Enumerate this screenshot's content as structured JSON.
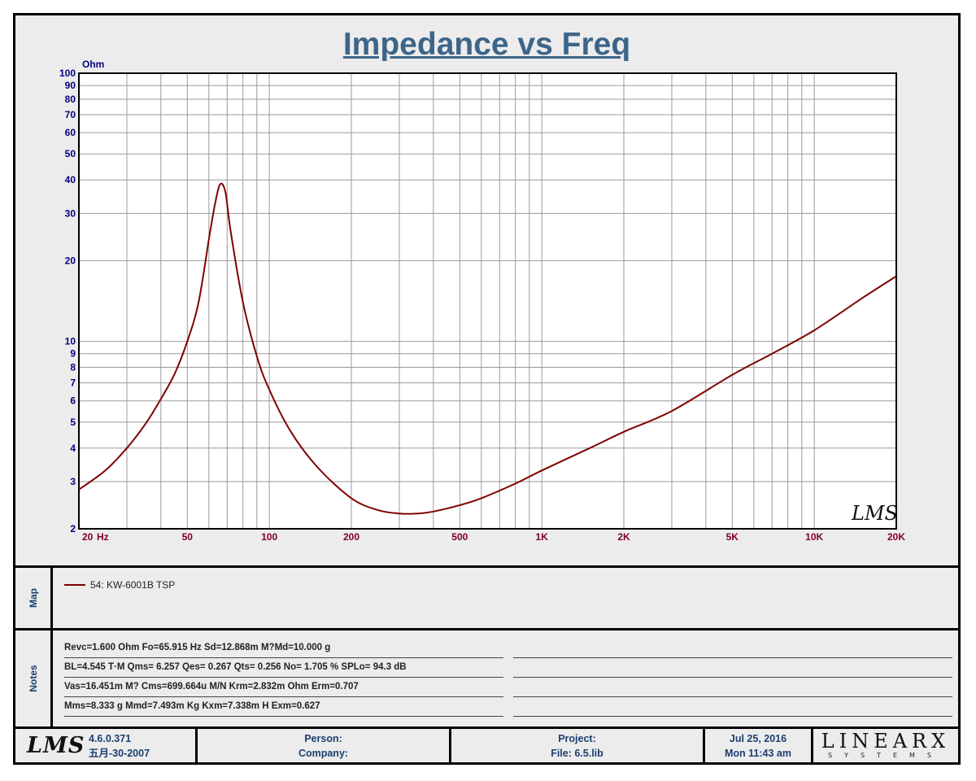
{
  "chart_data": {
    "type": "line",
    "title": "Impedance vs Freq",
    "ylabel": "Ohm",
    "xlabel": "Hz",
    "x_scale": "log",
    "y_scale": "log",
    "xlim": [
      20,
      20000
    ],
    "ylim": [
      2,
      100
    ],
    "grid": true,
    "x_ticks": [
      {
        "value": 20,
        "label": "20"
      },
      {
        "value": 50,
        "label": "50"
      },
      {
        "value": 100,
        "label": "100"
      },
      {
        "value": 200,
        "label": "200"
      },
      {
        "value": 500,
        "label": "500"
      },
      {
        "value": 1000,
        "label": "1K"
      },
      {
        "value": 2000,
        "label": "2K"
      },
      {
        "value": 5000,
        "label": "5K"
      },
      {
        "value": 10000,
        "label": "10K"
      },
      {
        "value": 20000,
        "label": "20K"
      }
    ],
    "y_ticks": [
      {
        "value": 2,
        "label": "2"
      },
      {
        "value": 3,
        "label": "3"
      },
      {
        "value": 4,
        "label": "4"
      },
      {
        "value": 5,
        "label": "5"
      },
      {
        "value": 6,
        "label": "6"
      },
      {
        "value": 7,
        "label": "7"
      },
      {
        "value": 8,
        "label": "8"
      },
      {
        "value": 9,
        "label": "9"
      },
      {
        "value": 10,
        "label": "10"
      },
      {
        "value": 20,
        "label": "20"
      },
      {
        "value": 30,
        "label": "30"
      },
      {
        "value": 40,
        "label": "40"
      },
      {
        "value": 50,
        "label": "50"
      },
      {
        "value": 60,
        "label": "60"
      },
      {
        "value": 70,
        "label": "70"
      },
      {
        "value": 80,
        "label": "80"
      },
      {
        "value": 90,
        "label": "90"
      },
      {
        "value": 100,
        "label": "100"
      }
    ],
    "series": [
      {
        "name": "54: KW-6001B TSP",
        "color": "#800000",
        "x": [
          20,
          25,
          30,
          35,
          40,
          45,
          50,
          55,
          60,
          63,
          65.9,
          69,
          72,
          80,
          90,
          100,
          120,
          150,
          200,
          250,
          300,
          350,
          400,
          500,
          600,
          800,
          1000,
          1500,
          2000,
          3000,
          5000,
          7000,
          10000,
          15000,
          20000
        ],
        "y": [
          2.8,
          3.3,
          4.0,
          4.9,
          6.1,
          7.6,
          10.0,
          14.0,
          24.0,
          32.0,
          38.5,
          36.0,
          26.0,
          14.0,
          8.8,
          6.6,
          4.6,
          3.4,
          2.6,
          2.35,
          2.28,
          2.28,
          2.32,
          2.45,
          2.6,
          2.95,
          3.3,
          4.0,
          4.6,
          5.5,
          7.5,
          9.0,
          11.0,
          14.5,
          17.5
        ]
      }
    ]
  },
  "map": {
    "label": "Map",
    "legend_label": "54: KW-6001B TSP"
  },
  "notes": {
    "label": "Notes",
    "lines": [
      "Revc=1.600 Ohm  Fo=65.915 Hz  Sd=12.868m M?Md=10.000 g",
      "BL=4.545 T·M  Qms= 6.257  Qes= 0.267  Qts= 0.256  No= 1.705 %  SPLo= 94.3 dB",
      "Vas=16.451m M? Cms=699.664u M/N  Krm=2.832m Ohm  Erm=0.707",
      "Mms=8.333 g  Mmd=7.493m Kg  Kxm=7.338m H  Exm=0.627"
    ]
  },
  "footer": {
    "logo_text": "LMS",
    "version": "4.6.0.371",
    "build_date": "五月-30-2007",
    "person_label": "Person:",
    "company_label": "Company:",
    "project_label": "Project:",
    "file_label": "File: 6.5.lib",
    "date": "Jul 25, 2016",
    "time": "Mon 11:43 am",
    "brand_word": "LINEARX",
    "brand_sub": "SYSTEMS"
  },
  "watermark": "LMS"
}
